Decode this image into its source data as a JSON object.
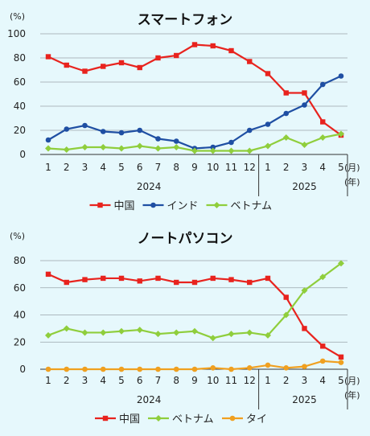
{
  "chart_data": [
    {
      "type": "line",
      "title": "スマートフォン",
      "y_unit": "(%)",
      "ylim": [
        0,
        100
      ],
      "yticks": [
        "0",
        "20",
        "40",
        "60",
        "80",
        "100"
      ],
      "categories": [
        "1",
        "2",
        "3",
        "4",
        "5",
        "6",
        "7",
        "8",
        "9",
        "10",
        "11",
        "12",
        "1",
        "2",
        "3",
        "4",
        "5"
      ],
      "month_unit": "(月)",
      "year_unit": "(年)",
      "year_labels": [
        "2024",
        "2025"
      ],
      "grid": true,
      "legend_position": "bottom",
      "series": [
        {
          "name": "中国",
          "color": "#e8231e",
          "marker": "square",
          "values": [
            81,
            74,
            69,
            73,
            76,
            72,
            80,
            82,
            91,
            90,
            86,
            77,
            67,
            51,
            51,
            27,
            16
          ]
        },
        {
          "name": "インド",
          "color": "#1f4fa3",
          "marker": "circle",
          "values": [
            12,
            21,
            24,
            19,
            18,
            20,
            13,
            11,
            5,
            6,
            10,
            20,
            25,
            34,
            41,
            58,
            65
          ]
        },
        {
          "name": "ベトナム",
          "color": "#8fce3c",
          "marker": "diamond",
          "values": [
            5,
            4,
            6,
            6,
            5,
            7,
            5,
            6,
            3,
            3,
            3,
            3,
            7,
            14,
            8,
            14,
            17
          ]
        }
      ]
    },
    {
      "type": "line",
      "title": "ノートパソコン",
      "y_unit": "(%)",
      "ylim": [
        0,
        80
      ],
      "yticks": [
        "0",
        "20",
        "40",
        "60",
        "80"
      ],
      "categories": [
        "1",
        "2",
        "3",
        "4",
        "5",
        "6",
        "7",
        "8",
        "9",
        "10",
        "11",
        "12",
        "1",
        "2",
        "3",
        "4",
        "5"
      ],
      "month_unit": "(月)",
      "year_unit": "(年)",
      "year_labels": [
        "2024",
        "2025"
      ],
      "grid": true,
      "legend_position": "bottom",
      "series": [
        {
          "name": "中国",
          "color": "#e8231e",
          "marker": "square",
          "values": [
            70,
            64,
            66,
            67,
            67,
            65,
            67,
            64,
            64,
            67,
            66,
            64,
            67,
            53,
            30,
            17,
            9
          ]
        },
        {
          "name": "ベトナム",
          "color": "#8fce3c",
          "marker": "diamond",
          "values": [
            25,
            30,
            27,
            27,
            28,
            29,
            26,
            27,
            28,
            23,
            26,
            27,
            25,
            40,
            58,
            68,
            78
          ]
        },
        {
          "name": "タイ",
          "color": "#f0a020",
          "marker": "circle",
          "values": [
            0,
            0,
            0,
            0,
            0,
            0,
            0,
            0,
            0,
            1,
            0,
            1,
            3,
            1,
            2,
            6,
            5
          ]
        }
      ]
    }
  ]
}
